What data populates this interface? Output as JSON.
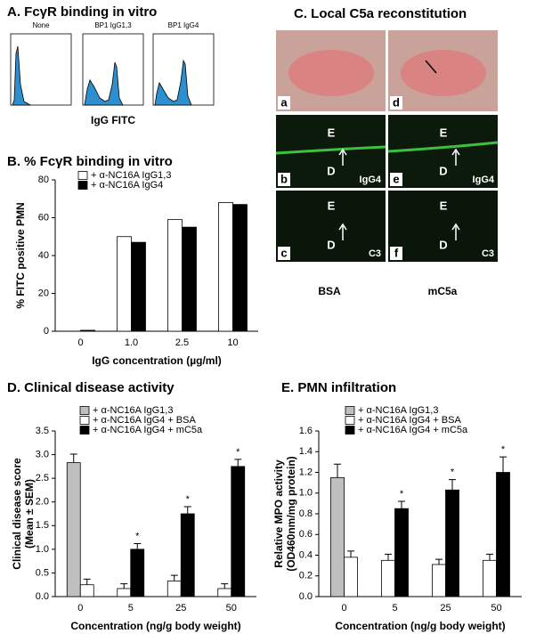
{
  "panel_a": {
    "title": "A.  FcγR binding in vitro",
    "subplots": [
      "None",
      "BP1 IgG1,3",
      "BP1 IgG4"
    ],
    "xlabel": "IgG FITC"
  },
  "panel_c": {
    "title": "C.  Local C5a reconstitution",
    "columns": [
      "BSA",
      "mC5a"
    ],
    "panel_letters": [
      [
        "a",
        "b",
        "c"
      ],
      [
        "d",
        "e",
        "f"
      ]
    ],
    "layer_labels": [
      "E",
      "D"
    ],
    "stain_labels": [
      "IgG4",
      "C3"
    ]
  },
  "chart_data": [
    {
      "type": "bar",
      "title": "B.  % FcγR binding in vitro",
      "categories": [
        "0",
        "1.0",
        "2.5",
        "10"
      ],
      "series": [
        {
          "name": "+ α-NC16A IgG1,3",
          "color": "#ffffff",
          "values": [
            0,
            50,
            59,
            68
          ]
        },
        {
          "name": "+ α-NC16A IgG4",
          "color": "#000000",
          "values": [
            0.5,
            47,
            55,
            67
          ]
        }
      ],
      "ylim": [
        0,
        80
      ],
      "yticks": [
        0,
        20,
        40,
        60,
        80
      ],
      "ylabel": [
        "% FITC positive PMN"
      ],
      "xlabel": "IgG concentration (µg/ml)"
    },
    {
      "type": "bar",
      "title": "D.  Clinical disease activity",
      "categories": [
        "0",
        "5",
        "25",
        "50"
      ],
      "series": [
        {
          "name": "+ α-NC16A IgG1,3",
          "color": "#bfbfbf",
          "values": [
            2.83,
            null,
            null,
            null
          ],
          "errors": [
            0.18,
            null,
            null,
            null
          ]
        },
        {
          "name": "+ α-NC16A IgG4 + BSA",
          "color": "#ffffff",
          "values": [
            0.25,
            0.17,
            0.33,
            0.17
          ],
          "errors": [
            0.12,
            0.1,
            0.12,
            0.1
          ]
        },
        {
          "name": "+ α-NC16A IgG4 + mC5a",
          "color": "#000000",
          "values": [
            null,
            1.0,
            1.75,
            2.75
          ],
          "errors": [
            null,
            0.12,
            0.15,
            0.15
          ]
        }
      ],
      "annotations": [
        null,
        "*",
        "*",
        "*"
      ],
      "ylim": [
        0,
        3.5
      ],
      "yticks": [
        {
          "value": 0,
          "label": "0.0"
        },
        0.5,
        {
          "value": 1,
          "label": "1.0"
        },
        1.5,
        {
          "value": 2,
          "label": "2.0"
        },
        2.5,
        {
          "value": 3,
          "label": "3.0"
        },
        3.5
      ],
      "ylabel": [
        "Clinical disease score",
        "(Mean ± SEM)"
      ],
      "xlabel": "Concentration (ng/g body weight)"
    },
    {
      "type": "bar",
      "title": "E.  PMN infiltration",
      "categories": [
        "0",
        "5",
        "25",
        "50"
      ],
      "series": [
        {
          "name": "+ α-NC16A IgG1,3",
          "color": "#bfbfbf",
          "values": [
            1.15,
            null,
            null,
            null
          ],
          "errors": [
            0.13,
            null,
            null,
            null
          ]
        },
        {
          "name": "+ α-NC16A IgG4 + BSA",
          "color": "#ffffff",
          "values": [
            0.38,
            0.35,
            0.31,
            0.35
          ],
          "errors": [
            0.06,
            0.06,
            0.05,
            0.06
          ]
        },
        {
          "name": "+ α-NC16A IgG4 + mC5a",
          "color": "#000000",
          "values": [
            null,
            0.85,
            1.03,
            1.2
          ],
          "errors": [
            null,
            0.07,
            0.1,
            0.15
          ]
        }
      ],
      "annotations": [
        null,
        "*",
        "*",
        "*"
      ],
      "ylim": [
        0,
        1.6
      ],
      "yticks": [
        {
          "value": 0,
          "label": "0.0"
        },
        0.2,
        0.4,
        0.6,
        0.8,
        {
          "value": 1,
          "label": "1.0"
        },
        1.2,
        1.4,
        1.6
      ],
      "ylabel": [
        "Relative MPO activity",
        "(OD460nm/mg protein)"
      ],
      "xlabel": "Concentration (ng/g body weight)"
    }
  ]
}
